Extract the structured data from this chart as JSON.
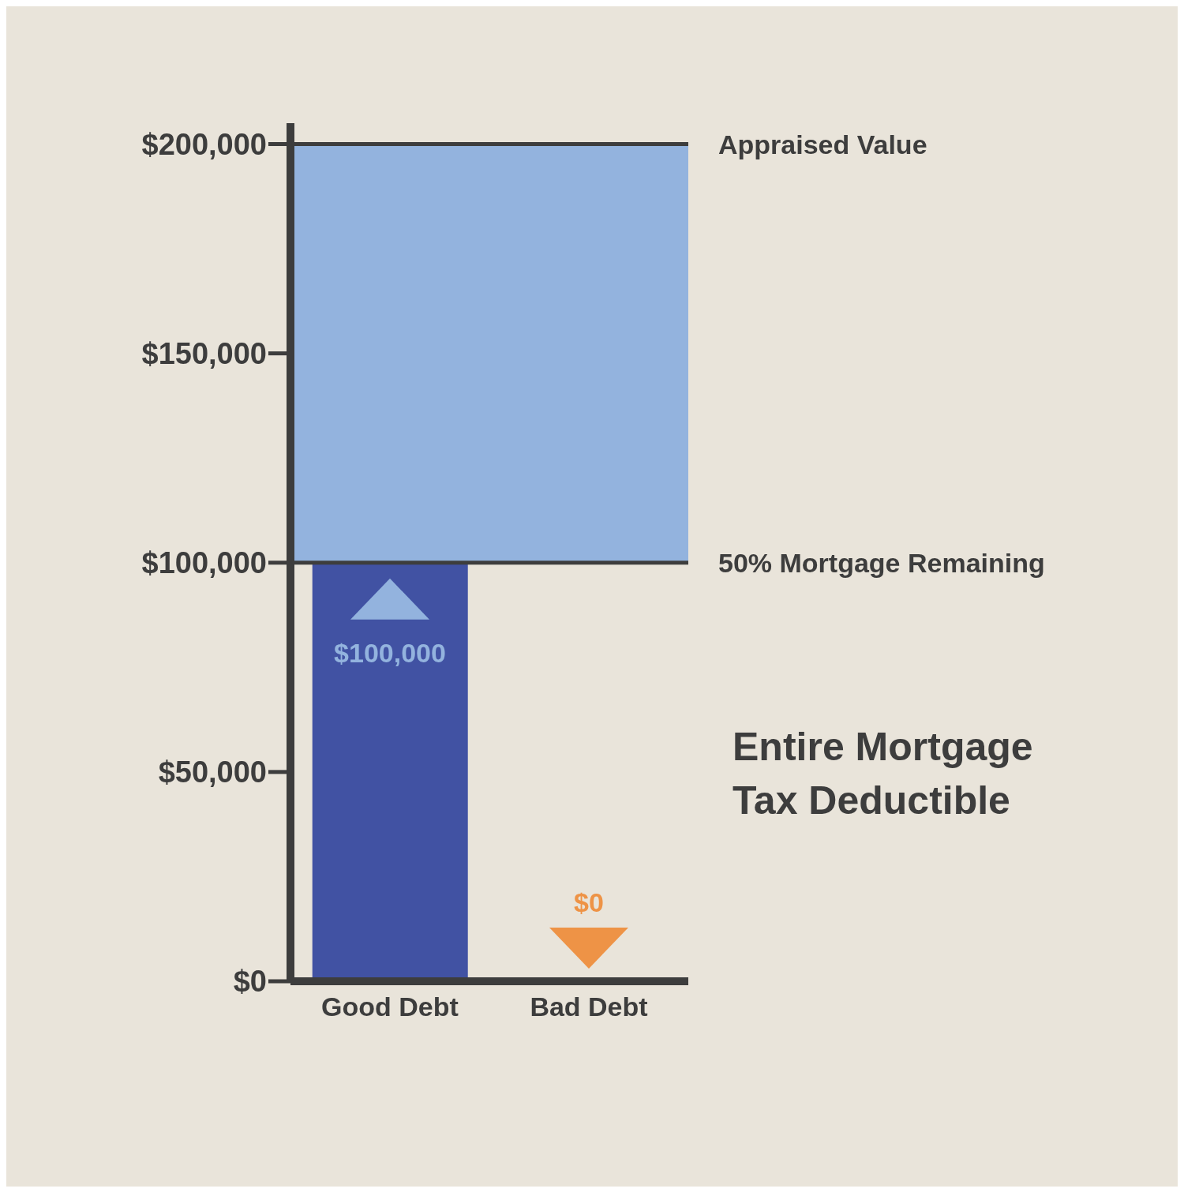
{
  "chart_data": {
    "type": "bar",
    "categories": [
      "Good Debt",
      "Bad Debt"
    ],
    "values": [
      100000,
      0
    ],
    "colors": [
      "#4152a3",
      "#ee9346"
    ],
    "value_labels": [
      "$100,000",
      "$0"
    ],
    "ylim": [
      0,
      205000
    ],
    "yticks": [
      {
        "value": 0,
        "label": "$0"
      },
      {
        "value": 50000,
        "label": "$50,000"
      },
      {
        "value": 100000,
        "label": "$100,000"
      },
      {
        "value": 150000,
        "label": "$150,000"
      },
      {
        "value": 200000,
        "label": "$200,000"
      }
    ],
    "bands": [
      {
        "axis": "y",
        "from": 100000,
        "to": 200000,
        "color": "#93b3de"
      }
    ],
    "ref_lines": [
      {
        "axis": "y",
        "value": 200000,
        "label": "Appraised Value"
      },
      {
        "axis": "y",
        "value": 100000,
        "label": "50% Mortgage Remaining"
      }
    ],
    "annotations": [
      "Entire Mortgage Tax Deductible"
    ]
  }
}
